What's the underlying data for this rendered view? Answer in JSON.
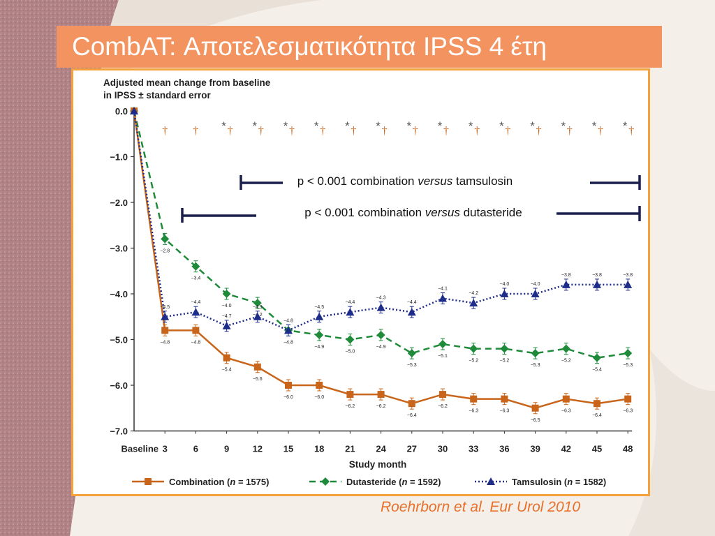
{
  "slide": {
    "title": "CombAT: Αποτελεσματικότητα IPSS 4 έτη",
    "citation": "Roehrborn et al. Eur Urol  2010"
  },
  "colors": {
    "title_bg": "#f3935f",
    "frame_border": "#f5a23d",
    "combination": "#c8651b",
    "dutasteride": "#1e8a3a",
    "tamsulosin": "#1f2d8a",
    "bracket": "#1a1f4d"
  },
  "chart_data": {
    "type": "line",
    "ylabel_line1": "Adjusted mean change from baseline",
    "ylabel_line2": "in IPSS ± standard error",
    "xlabel": "Study month",
    "ylim": [
      -7.0,
      0.0
    ],
    "yticks": [
      "0.0",
      "−1.0",
      "−2.0",
      "−3.0",
      "−4.0",
      "−5.0",
      "−6.0",
      "−7.0"
    ],
    "ytick_values": [
      0,
      -1,
      -2,
      -3,
      -4,
      -5,
      -6,
      -7
    ],
    "categories": [
      "Baseline",
      "3",
      "6",
      "9",
      "12",
      "15",
      "18",
      "21",
      "24",
      "27",
      "30",
      "33",
      "36",
      "39",
      "42",
      "45",
      "48"
    ],
    "grid": false,
    "legend_position": "bottom",
    "series": [
      {
        "name": "Combination",
        "n_label": "1575",
        "marker": "square",
        "style": "solid",
        "values": [
          0.0,
          -4.8,
          -4.8,
          -5.4,
          -5.6,
          -6.0,
          -6.0,
          -6.2,
          -6.2,
          -6.4,
          -6.2,
          -6.3,
          -6.3,
          -6.5,
          -6.3,
          -6.4,
          -6.3
        ],
        "labels": [
          "",
          "−4.8",
          "−4.8",
          "−5.4",
          "−5.6",
          "−6.0",
          "−6.0",
          "−6.2",
          "−6.2",
          "−6.4",
          "−6.2",
          "−6.3",
          "−6.3",
          "−6.5",
          "−6.3",
          "−6.4",
          "−6.3"
        ]
      },
      {
        "name": "Dutasteride",
        "n_label": "1592",
        "marker": "diamond",
        "style": "dashed",
        "values": [
          0.0,
          -2.8,
          -3.4,
          -4.0,
          -4.2,
          -4.8,
          -4.9,
          -5.0,
          -4.9,
          -5.3,
          -5.1,
          -5.2,
          -5.2,
          -5.3,
          -5.2,
          -5.4,
          -5.3
        ],
        "labels": [
          "",
          "−2.8",
          "−3.4",
          "−4.0",
          "−4.2",
          "−4.8",
          "−4.9",
          "−5.0",
          "−4.9",
          "−5.3",
          "−5.1",
          "−5.2",
          "−5.2",
          "−5.3",
          "−5.2",
          "−5.4",
          "−5.3"
        ]
      },
      {
        "name": "Tamsulosin",
        "n_label": "1582",
        "marker": "triangle",
        "style": "dotted",
        "values": [
          0.0,
          -4.5,
          -4.4,
          -4.7,
          -4.5,
          -4.8,
          -4.5,
          -4.4,
          -4.3,
          -4.4,
          -4.1,
          -4.2,
          -4.0,
          -4.0,
          -3.8,
          -3.8,
          -3.8
        ],
        "labels": [
          "",
          "−4.5",
          "−4.4",
          "−4.7",
          "−4.5",
          "−4.8",
          "−4.5",
          "−4.4",
          "−4.3",
          "−4.4",
          "−4.1",
          "−4.2",
          "−4.0",
          "−4.0",
          "−3.8",
          "−3.8",
          "−3.8"
        ]
      }
    ],
    "significance": {
      "star_symbol": "*",
      "dagger_symbol": "†",
      "star_months": [
        "9",
        "12",
        "15",
        "18",
        "21",
        "24",
        "27",
        "30",
        "33",
        "36",
        "39",
        "42",
        "45",
        "48"
      ],
      "dagger_months": [
        "3",
        "6",
        "9",
        "12",
        "15",
        "18",
        "21",
        "24",
        "27",
        "30",
        "33",
        "36",
        "39",
        "42",
        "45",
        "48"
      ]
    },
    "annotations": {
      "tamsulosin": {
        "prefix": "p < 0.001 combination ",
        "italic": "versus",
        "suffix": " tamsulosin"
      },
      "dutasteride": {
        "prefix": "p < 0.001 combination ",
        "italic": "versus",
        "suffix": " dutasteride"
      }
    }
  }
}
